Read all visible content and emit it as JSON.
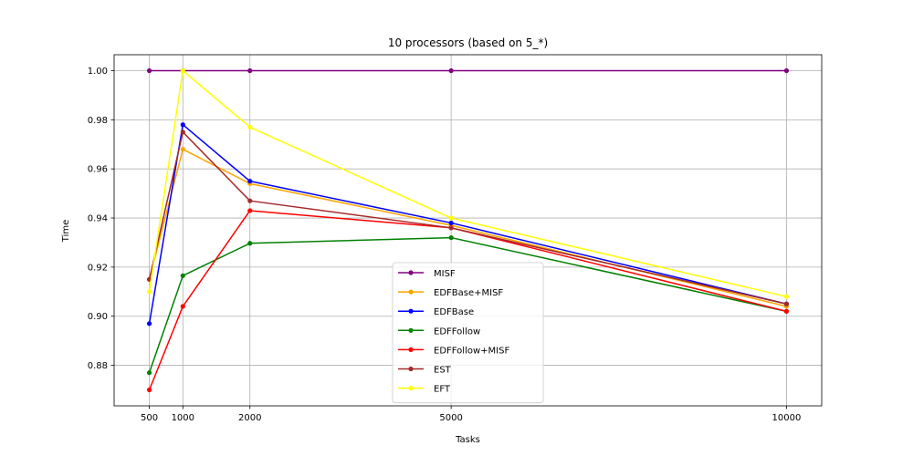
{
  "chart_data": {
    "type": "line",
    "title": "10 processors (based on 5_*)",
    "xlabel": "Tasks",
    "ylabel": "Time",
    "x": [
      500,
      1000,
      2000,
      5000,
      10000
    ],
    "xticks": [
      500,
      1000,
      2000,
      5000,
      10000
    ],
    "xtick_labels": [
      "500",
      "1000",
      "2000",
      "5000",
      "10000"
    ],
    "yticks": [
      0.88,
      0.9,
      0.92,
      0.94,
      0.96,
      0.98,
      1.0
    ],
    "ytick_labels": [
      "0.88",
      "0.90",
      "0.92",
      "0.94",
      "0.96",
      "0.98",
      "1.00"
    ],
    "xlim": [
      -25,
      10525
    ],
    "ylim": [
      0.8635,
      1.0065
    ],
    "grid": true,
    "legend_position": "lower-center",
    "series": [
      {
        "name": "MISF",
        "color": "#800080",
        "values": [
          1.0,
          1.0,
          1.0,
          1.0,
          1.0
        ]
      },
      {
        "name": "EDFBase+MISF",
        "color": "#ffa500",
        "values": [
          0.915,
          0.968,
          0.954,
          0.937,
          0.904
        ]
      },
      {
        "name": "EDFBase",
        "color": "#0000ff",
        "values": [
          0.897,
          0.978,
          0.955,
          0.938,
          0.905
        ]
      },
      {
        "name": "EDFFollow",
        "color": "#008000",
        "values": [
          0.877,
          0.9165,
          0.9297,
          0.932,
          0.902
        ]
      },
      {
        "name": "EDFFollow+MISF",
        "color": "#ff0000",
        "values": [
          0.87,
          0.904,
          0.943,
          0.936,
          0.902
        ]
      },
      {
        "name": "EST",
        "color": "#a52a2a",
        "values": [
          0.915,
          0.975,
          0.947,
          0.936,
          0.905
        ]
      },
      {
        "name": "EFT",
        "color": "#ffff00",
        "values": [
          0.91,
          1.0,
          0.977,
          0.94,
          0.908
        ]
      }
    ]
  }
}
